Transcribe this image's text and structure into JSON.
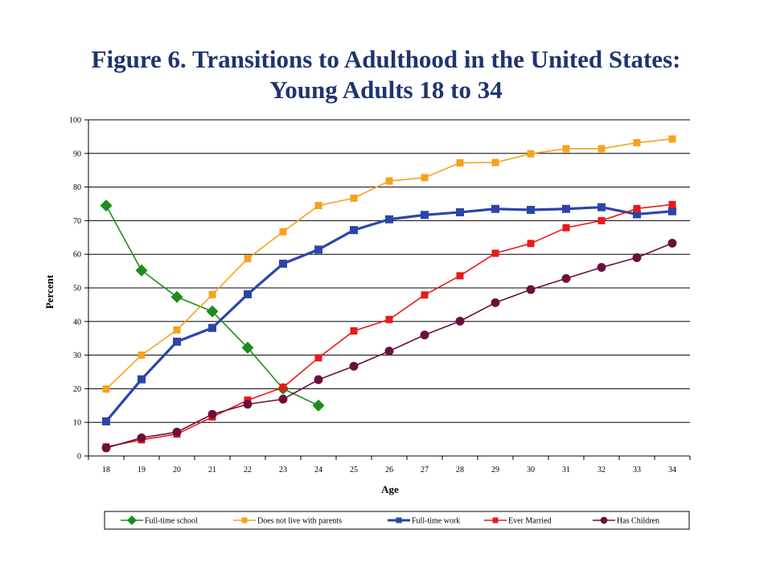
{
  "title": {
    "line1": "Figure 6.  Transitions to Adulthood in the United States:",
    "line2": "Young Adults 18 to 34"
  },
  "chart_data": {
    "type": "line",
    "title": "Figure 6.  Transitions to Adulthood in the United States: Young Adults 18 to 34",
    "xlabel": "Age",
    "ylabel": "Percent",
    "x": [
      18,
      19,
      20,
      21,
      22,
      23,
      24,
      25,
      26,
      27,
      28,
      29,
      30,
      31,
      32,
      33,
      34
    ],
    "ylim": [
      0,
      100
    ],
    "yticks": [
      0,
      10,
      20,
      30,
      40,
      50,
      60,
      70,
      80,
      90,
      100
    ],
    "grid": "horizontal",
    "legend_position": "bottom",
    "series": [
      {
        "name": "Full-time school",
        "color": "#1E8C1E",
        "marker": "diamond",
        "values": [
          74.5,
          55.2,
          47.3,
          43.0,
          32.2,
          20.0,
          15.0,
          null,
          null,
          null,
          null,
          null,
          null,
          null,
          null,
          null,
          null
        ]
      },
      {
        "name": "Does not live with parents",
        "color": "#F7A21B",
        "marker": "square",
        "values": [
          19.9,
          30.0,
          37.5,
          48.0,
          58.7,
          66.7,
          74.5,
          76.7,
          81.8,
          82.8,
          87.2,
          87.3,
          89.9,
          91.4,
          91.4,
          93.2,
          94.3
        ]
      },
      {
        "name": "Full-time work",
        "color": "#2B45A8",
        "marker": "square",
        "values": [
          10.3,
          22.8,
          34.0,
          38.1,
          48.1,
          57.2,
          61.4,
          67.2,
          70.4,
          71.7,
          72.5,
          73.5,
          73.2,
          73.5,
          74.0,
          71.9,
          72.8
        ]
      },
      {
        "name": "Ever Married",
        "color": "#E81A1A",
        "marker": "square",
        "values": [
          2.7,
          4.8,
          6.5,
          11.6,
          16.6,
          20.4,
          29.2,
          37.2,
          40.6,
          47.9,
          53.6,
          60.3,
          63.2,
          67.9,
          70.0,
          73.6,
          74.8
        ]
      },
      {
        "name": "Has Children",
        "color": "#6B0F3C",
        "marker": "circle",
        "values": [
          2.4,
          5.4,
          7.1,
          12.4,
          15.4,
          16.9,
          22.7,
          26.7,
          31.2,
          36.0,
          40.1,
          45.6,
          49.5,
          52.8,
          56.1,
          59.0,
          63.3
        ]
      }
    ]
  }
}
